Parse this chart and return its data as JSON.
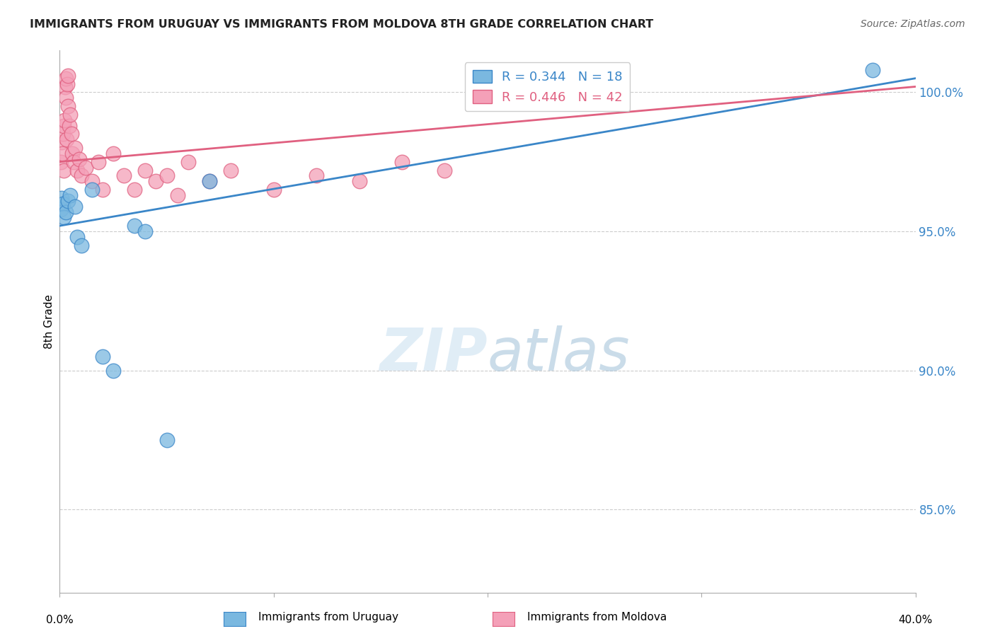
{
  "title": "IMMIGRANTS FROM URUGUAY VS IMMIGRANTS FROM MOLDOVA 8TH GRADE CORRELATION CHART",
  "source": "Source: ZipAtlas.com",
  "ylabel": "8th Grade",
  "yaxis_values": [
    85.0,
    90.0,
    95.0,
    100.0
  ],
  "xlim": [
    0.0,
    40.0
  ],
  "ylim": [
    82.0,
    101.5
  ],
  "R_uruguay": 0.344,
  "N_uruguay": 18,
  "R_moldova": 0.446,
  "N_moldova": 42,
  "color_uruguay": "#7ab8e0",
  "color_moldova": "#f4a0b8",
  "trendline_color_uruguay": "#3a86c8",
  "trendline_color_moldova": "#e06080",
  "uruguay_x": [
    0.05,
    0.1,
    0.15,
    0.2,
    0.3,
    0.4,
    0.5,
    0.7,
    0.8,
    1.0,
    1.5,
    2.0,
    2.5,
    3.5,
    4.0,
    5.0,
    7.0,
    38.0
  ],
  "uruguay_y": [
    95.8,
    96.2,
    96.0,
    95.5,
    95.7,
    96.1,
    96.3,
    95.9,
    94.8,
    94.5,
    96.5,
    90.5,
    90.0,
    95.2,
    95.0,
    87.5,
    96.8,
    100.8
  ],
  "moldova_x": [
    0.05,
    0.1,
    0.12,
    0.15,
    0.18,
    0.2,
    0.22,
    0.25,
    0.28,
    0.3,
    0.32,
    0.35,
    0.38,
    0.4,
    0.45,
    0.5,
    0.55,
    0.6,
    0.65,
    0.7,
    0.8,
    0.9,
    1.0,
    1.2,
    1.5,
    1.8,
    2.0,
    2.5,
    3.0,
    3.5,
    4.0,
    4.5,
    5.0,
    5.5,
    6.0,
    7.0,
    8.0,
    10.0,
    12.0,
    14.0,
    16.0,
    18.0
  ],
  "moldova_y": [
    97.5,
    98.2,
    97.8,
    98.5,
    97.2,
    98.8,
    99.0,
    100.2,
    100.5,
    99.8,
    98.3,
    100.3,
    100.6,
    99.5,
    98.8,
    99.2,
    98.5,
    97.8,
    97.5,
    98.0,
    97.2,
    97.6,
    97.0,
    97.3,
    96.8,
    97.5,
    96.5,
    97.8,
    97.0,
    96.5,
    97.2,
    96.8,
    97.0,
    96.3,
    97.5,
    96.8,
    97.2,
    96.5,
    97.0,
    96.8,
    97.5,
    97.2
  ],
  "watermark_zip": "ZIP",
  "watermark_atlas": "atlas",
  "background_color": "#ffffff",
  "grid_color": "#cccccc",
  "legend_blue_text": "R = 0.344   N = 18",
  "legend_pink_text": "R = 0.446   N = 42"
}
